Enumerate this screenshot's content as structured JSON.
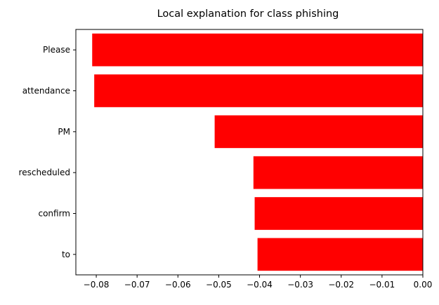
{
  "chart_data": {
    "type": "bar",
    "orientation": "horizontal",
    "title": "Local explanation for class phishing",
    "xlabel": "",
    "ylabel": "",
    "categories": [
      "Please",
      "attendance",
      "PM",
      "rescheduled",
      "confirm",
      "to"
    ],
    "values": [
      -0.081,
      -0.0805,
      -0.051,
      -0.0415,
      -0.0412,
      -0.0405
    ],
    "xlim": [
      -0.085,
      0.0
    ],
    "x_ticks": [
      -0.08,
      -0.07,
      -0.06,
      -0.05,
      -0.04,
      -0.03,
      -0.02,
      -0.01,
      0.0
    ],
    "x_tick_labels": [
      "−0.08",
      "−0.07",
      "−0.06",
      "−0.05",
      "−0.04",
      "−0.03",
      "−0.02",
      "−0.01",
      "0.00"
    ],
    "bar_color": "#ff0000",
    "grid": false,
    "legend": "none"
  }
}
